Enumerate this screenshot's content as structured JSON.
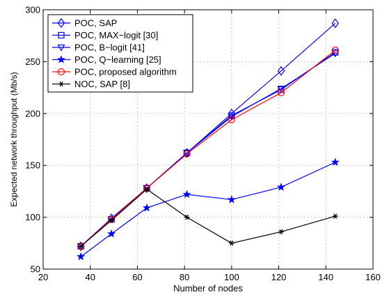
{
  "chart_data": {
    "type": "line",
    "title": "",
    "xlabel": "Number of nodes",
    "ylabel": "Expected network throughput (Mb/s)",
    "xlim": [
      20,
      160
    ],
    "ylim": [
      50,
      300
    ],
    "xticks": [
      20,
      40,
      60,
      80,
      100,
      120,
      140,
      160
    ],
    "yticks": [
      50,
      100,
      150,
      200,
      250,
      300
    ],
    "grid": true,
    "legend_position": "top-left",
    "x": [
      36,
      49,
      64,
      81,
      100,
      121,
      144
    ],
    "series": [
      {
        "name": "POC, SAP",
        "color": "#0000ff",
        "marker": "diamond",
        "values": [
          72,
          99,
          128,
          162,
          200,
          241,
          287
        ]
      },
      {
        "name": "POC, MAX−logit [30]",
        "color": "#0000ff",
        "marker": "square",
        "values": [
          72,
          98,
          128,
          162,
          198,
          223,
          259
        ]
      },
      {
        "name": "POC, B−logit [41]",
        "color": "#0000ff",
        "marker": "triangle-down",
        "values": [
          72,
          98,
          128,
          162,
          197,
          224,
          258
        ]
      },
      {
        "name": "POC, Q−learning [25]",
        "color": "#0000ff",
        "marker": "star",
        "values": [
          62,
          84,
          109,
          122,
          117,
          129,
          153
        ]
      },
      {
        "name": "POC, proposed algorithm",
        "color": "#ff0000",
        "marker": "circle",
        "values": [
          72,
          98,
          128,
          161,
          194,
          220,
          261
        ]
      },
      {
        "name": "NOC, SAP [8]",
        "color": "#000000",
        "marker": "asterisk",
        "values": [
          72,
          97,
          127,
          100,
          75,
          86,
          101
        ]
      }
    ]
  }
}
